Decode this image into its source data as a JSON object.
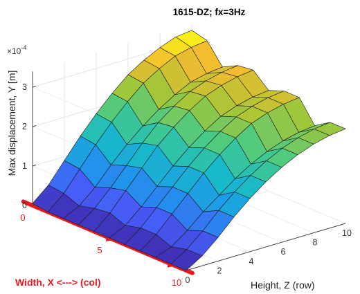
{
  "chart_data": {
    "type": "surface",
    "title": "1615-DZ; fx=3Hz",
    "zlabel": "Max displacement, Y [m]",
    "zscale_label": "×10",
    "zscale_exponent": "-4",
    "xlabel": "Width, X <---> (col)",
    "ylabel": "Height, Z (row)",
    "x_ticks": [
      "0",
      "5",
      "10"
    ],
    "y_ticks": [
      "0",
      "2",
      "4",
      "6",
      "8",
      "10"
    ],
    "z_ticks": [
      "0",
      "1",
      "2",
      "3"
    ],
    "zlim": [
      0,
      3.4
    ],
    "xlabel_color": "#e8191e",
    "x_axis_color": "#e8191e",
    "colormap": "parula",
    "series": [
      {
        "width_x": 0,
        "height_z": [
          0,
          1,
          2,
          3,
          4,
          5,
          6,
          7,
          8,
          9,
          10
        ],
        "max_displacement_e4": [
          0.05,
          0.4,
          0.9,
          1.4,
          1.85,
          2.25,
          2.6,
          2.85,
          3.05,
          3.2,
          3.25
        ]
      },
      {
        "width_x": 1,
        "height_z": [
          0,
          1,
          2,
          3,
          4,
          5,
          6,
          7,
          8,
          9,
          10
        ],
        "max_displacement_e4": [
          0.0,
          0.35,
          0.85,
          1.35,
          1.8,
          2.2,
          2.55,
          2.8,
          3.0,
          3.1,
          3.15
        ]
      },
      {
        "width_x": 2,
        "height_z": [
          0,
          1,
          2,
          3,
          4,
          5,
          6,
          7,
          8,
          9,
          10
        ],
        "max_displacement_e4": [
          0.0,
          0.2,
          0.55,
          1.0,
          1.4,
          1.75,
          2.05,
          2.3,
          2.5,
          2.6,
          2.65
        ]
      },
      {
        "width_x": 3,
        "height_z": [
          0,
          1,
          2,
          3,
          4,
          5,
          6,
          7,
          8,
          9,
          10
        ],
        "max_displacement_e4": [
          0.0,
          0.3,
          0.7,
          1.15,
          1.6,
          2.0,
          2.3,
          2.55,
          2.7,
          2.8,
          2.85
        ]
      },
      {
        "width_x": 4,
        "height_z": [
          0,
          1,
          2,
          3,
          4,
          5,
          6,
          7,
          8,
          9,
          10
        ],
        "max_displacement_e4": [
          0.0,
          0.35,
          0.8,
          1.25,
          1.7,
          2.05,
          2.35,
          2.6,
          2.75,
          2.85,
          2.9
        ]
      },
      {
        "width_x": 5,
        "height_z": [
          0,
          1,
          2,
          3,
          4,
          5,
          6,
          7,
          8,
          9,
          10
        ],
        "max_displacement_e4": [
          0.0,
          0.2,
          0.55,
          0.95,
          1.35,
          1.7,
          2.0,
          2.25,
          2.4,
          2.5,
          2.55
        ]
      },
      {
        "width_x": 6,
        "height_z": [
          0,
          1,
          2,
          3,
          4,
          5,
          6,
          7,
          8,
          9,
          10
        ],
        "max_displacement_e4": [
          0.0,
          0.3,
          0.7,
          1.1,
          1.5,
          1.85,
          2.15,
          2.4,
          2.55,
          2.65,
          2.7
        ]
      },
      {
        "width_x": 7,
        "height_z": [
          0,
          1,
          2,
          3,
          4,
          5,
          6,
          7,
          8,
          9,
          10
        ],
        "max_displacement_e4": [
          0.0,
          0.3,
          0.7,
          1.1,
          1.5,
          1.85,
          2.15,
          2.4,
          2.55,
          2.65,
          2.7
        ]
      },
      {
        "width_x": 8,
        "height_z": [
          0,
          1,
          2,
          3,
          4,
          5,
          6,
          7,
          8,
          9,
          10
        ],
        "max_displacement_e4": [
          0.0,
          0.15,
          0.45,
          0.8,
          1.1,
          1.4,
          1.65,
          1.85,
          2.0,
          2.1,
          2.15
        ]
      },
      {
        "width_x": 9,
        "height_z": [
          0,
          1,
          2,
          3,
          4,
          5,
          6,
          7,
          8,
          9,
          10
        ],
        "max_displacement_e4": [
          0.0,
          0.25,
          0.6,
          1.0,
          1.35,
          1.65,
          1.9,
          2.1,
          2.25,
          2.35,
          2.4
        ]
      },
      {
        "width_x": 10,
        "height_z": [
          0,
          1,
          2,
          3,
          4,
          5,
          6,
          7,
          8,
          9,
          10
        ],
        "max_displacement_e4": [
          0.0,
          0.25,
          0.6,
          1.0,
          1.35,
          1.65,
          1.9,
          2.1,
          2.25,
          2.35,
          2.4
        ]
      }
    ]
  }
}
